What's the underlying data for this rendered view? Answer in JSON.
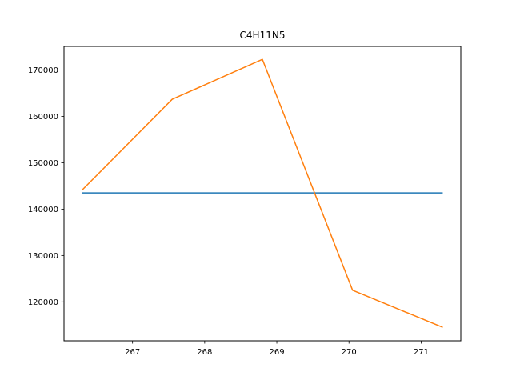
{
  "chart_data": {
    "type": "line",
    "title": "C4H11N5",
    "xlabel": "",
    "ylabel": "",
    "xlim": [
      266.05,
      271.55
    ],
    "ylim": [
      111600,
      175100
    ],
    "x_ticks": [
      267,
      268,
      269,
      270,
      271
    ],
    "y_ticks": [
      120000,
      130000,
      140000,
      150000,
      160000,
      170000
    ],
    "grid": false,
    "legend": "none",
    "series": [
      {
        "color": "#1f77b4",
        "x": [
          266.3,
          271.3
        ],
        "y": [
          143500,
          143500
        ]
      },
      {
        "color": "#ff7f0e",
        "x": [
          266.3,
          267.55,
          268.8,
          270.05,
          271.3
        ],
        "y": [
          144100,
          163700,
          172300,
          122500,
          114500
        ]
      }
    ]
  }
}
